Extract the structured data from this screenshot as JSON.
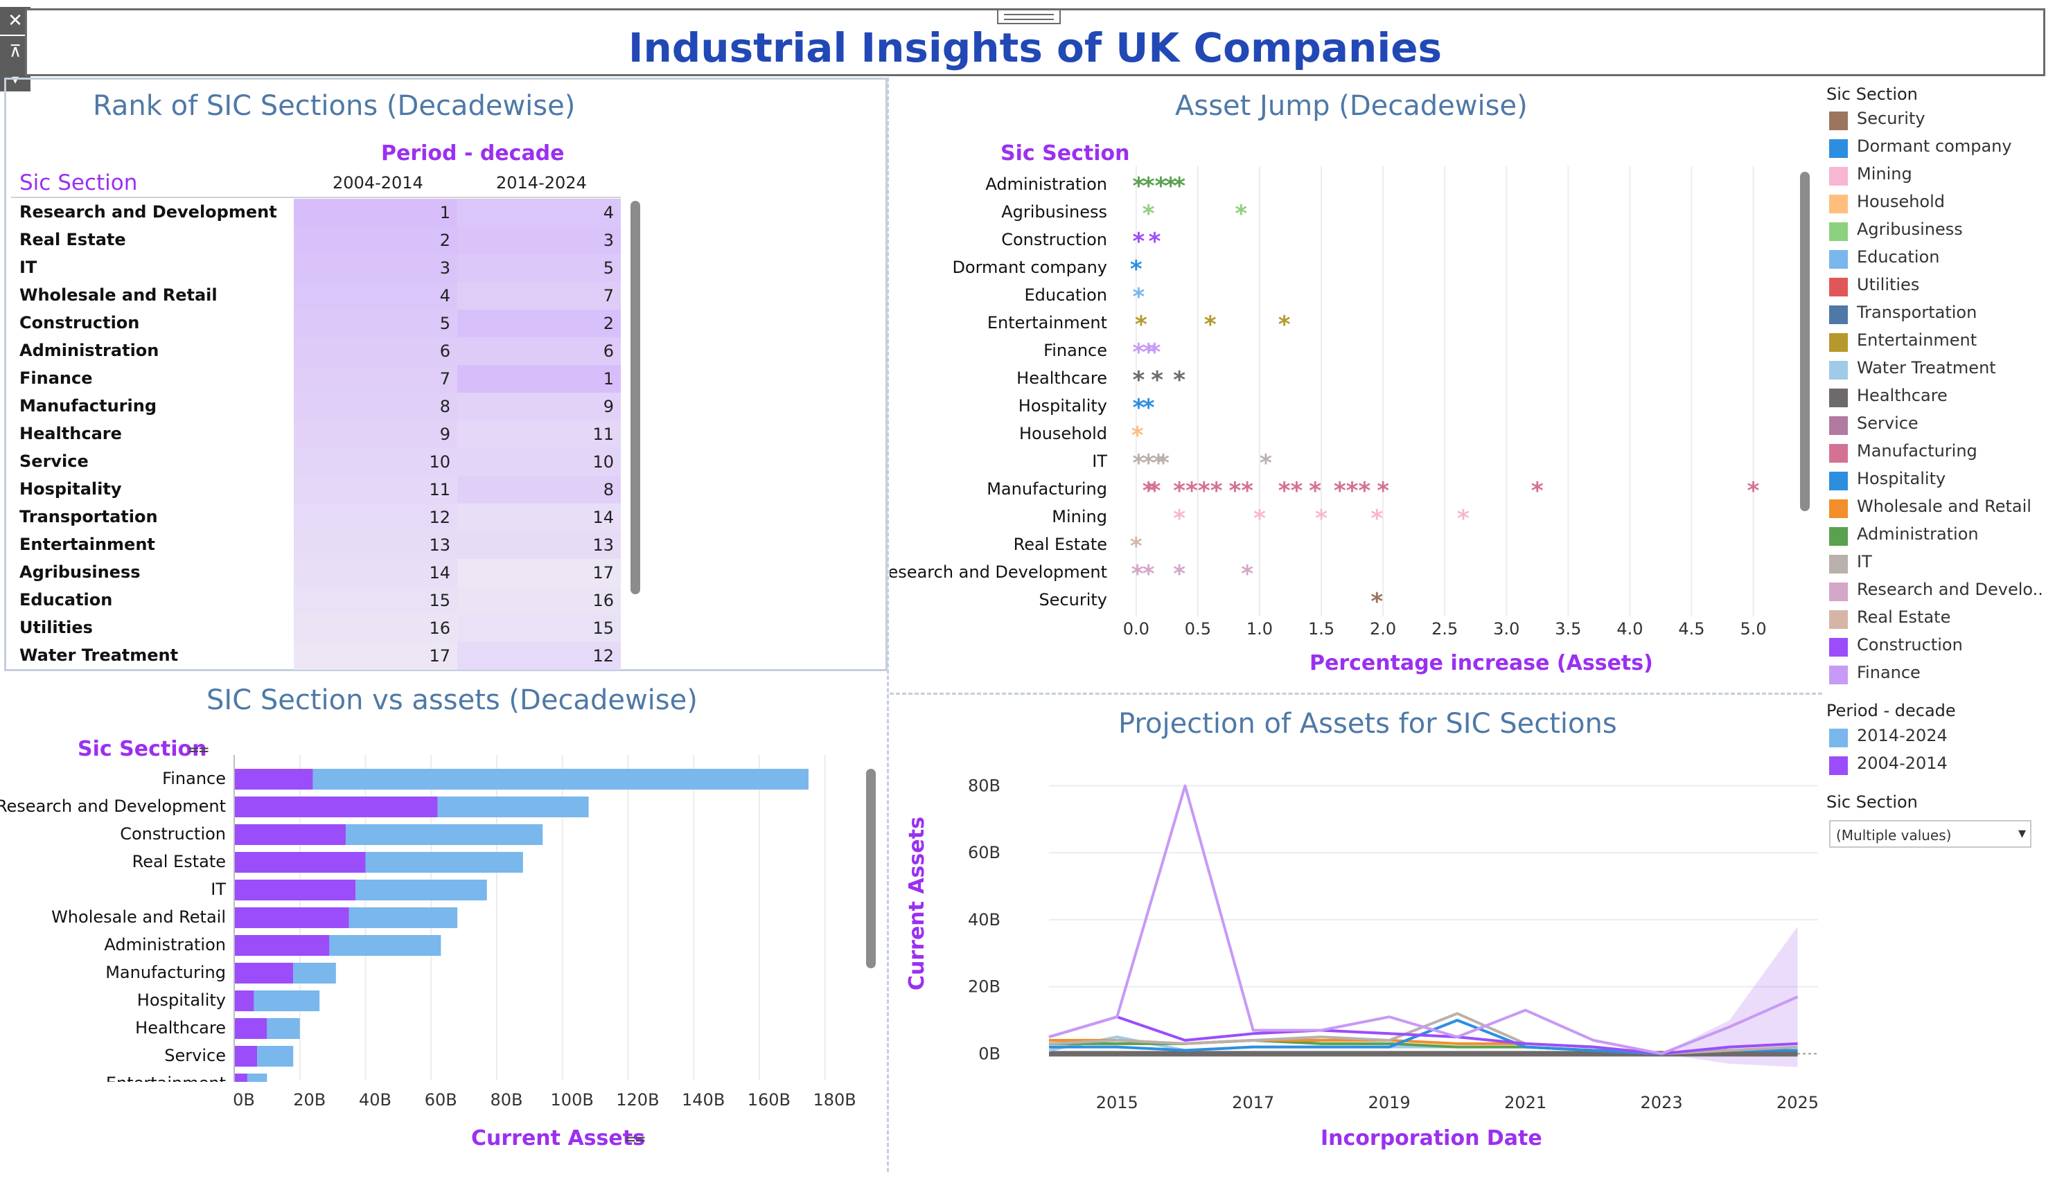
{
  "dashboard_title": "Industrial Insights of UK Companies",
  "toolbar": {
    "close_icon": "close-icon",
    "pin_icon": "pin-icon",
    "menu_icon": "chevron-down-icon"
  },
  "rank_panel": {
    "title": "Rank of SIC Sections (Decadewise)",
    "column_group": "Period  - decade",
    "row_header": "Sic Section",
    "columns": [
      "2004-2014",
      "2014-2024"
    ],
    "rows": [
      {
        "name": "Research and Development",
        "r1": "1",
        "r2": "4"
      },
      {
        "name": "Real Estate",
        "r1": "2",
        "r2": "3"
      },
      {
        "name": "IT",
        "r1": "3",
        "r2": "5"
      },
      {
        "name": "Wholesale and Retail",
        "r1": "4",
        "r2": "7"
      },
      {
        "name": "Construction",
        "r1": "5",
        "r2": "2"
      },
      {
        "name": "Administration",
        "r1": "6",
        "r2": "6"
      },
      {
        "name": "Finance",
        "r1": "7",
        "r2": "1"
      },
      {
        "name": "Manufacturing",
        "r1": "8",
        "r2": "9"
      },
      {
        "name": "Healthcare",
        "r1": "9",
        "r2": "11"
      },
      {
        "name": "Service",
        "r1": "10",
        "r2": "10"
      },
      {
        "name": "Hospitality",
        "r1": "11",
        "r2": "8"
      },
      {
        "name": "Transportation",
        "r1": "12",
        "r2": "14"
      },
      {
        "name": "Entertainment",
        "r1": "13",
        "r2": "13"
      },
      {
        "name": "Agribusiness",
        "r1": "14",
        "r2": "17"
      },
      {
        "name": "Education",
        "r1": "15",
        "r2": "16"
      },
      {
        "name": "Utilities",
        "r1": "16",
        "r2": "15"
      },
      {
        "name": "Water Treatment",
        "r1": "17",
        "r2": "12"
      }
    ]
  },
  "asset_jump_panel": {
    "title": "Asset Jump (Decadewise)",
    "row_header": "Sic Section",
    "x_label": "Percentage increase (Assets)"
  },
  "bar_panel": {
    "title": "SIC Section vs assets (Decadewise)",
    "row_header": "Sic Section",
    "x_label": "Current Assets"
  },
  "projection_panel": {
    "title": "Projection of Assets for SIC Sections",
    "x_label": "Incorporation Date",
    "y_label": "Current Assets"
  },
  "legend": {
    "sic_title": "Sic Section",
    "sic_items": [
      {
        "label": "Security",
        "color": "#9c755f"
      },
      {
        "label": "Dormant company",
        "color": "#2d8ee0"
      },
      {
        "label": "Mining",
        "color": "#f7b6d2"
      },
      {
        "label": "Household",
        "color": "#ffbe7d"
      },
      {
        "label": "Agribusiness",
        "color": "#8cd17d"
      },
      {
        "label": "Education",
        "color": "#79b7ec"
      },
      {
        "label": "Utilities",
        "color": "#e15759"
      },
      {
        "label": "Transportation",
        "color": "#4e79a7"
      },
      {
        "label": "Entertainment",
        "color": "#b6992d"
      },
      {
        "label": "Water Treatment",
        "color": "#a0cbe8"
      },
      {
        "label": "Healthcare",
        "color": "#6f6a6a"
      },
      {
        "label": "Service",
        "color": "#b07aa1"
      },
      {
        "label": "Manufacturing",
        "color": "#d37295"
      },
      {
        "label": "Hospitality",
        "color": "#2d8ee0"
      },
      {
        "label": "Wholesale and Retail",
        "color": "#f28e2b"
      },
      {
        "label": "Administration",
        "color": "#59a14f"
      },
      {
        "label": "IT",
        "color": "#bab0ac"
      },
      {
        "label": "Research and Develo..",
        "color": "#d4a6c8"
      },
      {
        "label": "Real Estate",
        "color": "#d7b5a6"
      },
      {
        "label": "Construction",
        "color": "#9b4dfa"
      },
      {
        "label": "Finance",
        "color": "#c79af5"
      }
    ],
    "period_title": "Period  - decade",
    "period_items": [
      {
        "label": "2014-2024",
        "color": "#79b7ec"
      },
      {
        "label": "2004-2014",
        "color": "#9b4dfa"
      }
    ],
    "filter_title": "Sic Section",
    "filter_value": "(Multiple values)"
  },
  "chart_data": [
    {
      "type": "scatter",
      "title": "Asset Jump (Decadewise)",
      "xlabel": "Percentage increase (Assets)",
      "ylabel": "Sic Section",
      "xlim": [
        -0.1,
        5.3
      ],
      "x_ticks": [
        "0.0",
        "0.5",
        "1.0",
        "1.5",
        "2.0",
        "2.5",
        "3.0",
        "3.5",
        "4.0",
        "4.5",
        "5.0"
      ],
      "series": [
        {
          "name": "Administration",
          "color": "#59a14f",
          "values": [
            0.02,
            0.1,
            0.2,
            0.28,
            0.35
          ]
        },
        {
          "name": "Agribusiness",
          "color": "#8cd17d",
          "values": [
            0.1,
            0.85
          ]
        },
        {
          "name": "Construction",
          "color": "#9b4dfa",
          "values": [
            0.02,
            0.15
          ]
        },
        {
          "name": "Dormant company",
          "color": "#2d8ee0",
          "values": [
            0.0
          ]
        },
        {
          "name": "Education",
          "color": "#79b7ec",
          "values": [
            0.02
          ]
        },
        {
          "name": "Entertainment",
          "color": "#b6992d",
          "values": [
            0.04,
            0.6,
            1.2
          ]
        },
        {
          "name": "Finance",
          "color": "#c79af5",
          "values": [
            0.02,
            0.1,
            0.15
          ]
        },
        {
          "name": "Healthcare",
          "color": "#6f6a6a",
          "values": [
            0.02,
            0.17,
            0.35
          ]
        },
        {
          "name": "Hospitality",
          "color": "#2d8ee0",
          "values": [
            0.02,
            0.1
          ]
        },
        {
          "name": "Household",
          "color": "#ffbe7d",
          "values": [
            0.01
          ]
        },
        {
          "name": "IT",
          "color": "#bab0ac",
          "values": [
            0.02,
            0.1,
            0.18,
            0.22,
            1.05
          ]
        },
        {
          "name": "Manufacturing",
          "color": "#d37295",
          "values": [
            0.1,
            0.15,
            0.35,
            0.45,
            0.55,
            0.65,
            0.8,
            0.9,
            1.2,
            1.3,
            1.45,
            1.65,
            1.75,
            1.85,
            2.0,
            3.25,
            5.0
          ]
        },
        {
          "name": "Mining",
          "color": "#f7b6d2",
          "values": [
            0.35,
            1.0,
            1.5,
            1.95,
            2.65
          ]
        },
        {
          "name": "Real Estate",
          "color": "#d7b5a6",
          "values": [
            0.0
          ]
        },
        {
          "name": "Research and Development",
          "color": "#d4a6c8",
          "values": [
            0.01,
            0.1,
            0.35,
            0.9
          ]
        },
        {
          "name": "Security",
          "color": "#9c755f",
          "values": [
            1.95
          ]
        }
      ]
    },
    {
      "type": "bar",
      "title": "SIC Section vs assets (Decadewise)",
      "xlabel": "Current Assets",
      "ylabel": "Sic Section",
      "xlim": [
        0,
        190
      ],
      "x_ticks": [
        "0B",
        "20B",
        "40B",
        "60B",
        "80B",
        "100B",
        "120B",
        "140B",
        "160B",
        "180B"
      ],
      "categories": [
        "Finance",
        "Research and Development",
        "Construction",
        "Real Estate",
        "IT",
        "Wholesale and Retail",
        "Administration",
        "Manufacturing",
        "Hospitality",
        "Healthcare",
        "Service",
        "Entertainment"
      ],
      "series": [
        {
          "name": "2004-2014",
          "color": "#9b4dfa",
          "values": [
            24,
            62,
            34,
            40,
            37,
            35,
            29,
            18,
            6,
            10,
            7,
            4
          ]
        },
        {
          "name": "2014-2024",
          "color": "#79b7ec",
          "values": [
            151,
            46,
            60,
            48,
            40,
            33,
            34,
            13,
            20,
            10,
            11,
            6
          ]
        }
      ]
    },
    {
      "type": "line",
      "title": "Projection of Assets for SIC Sections",
      "xlabel": "Incorporation Date",
      "ylabel": "Current Assets",
      "xlim": [
        2014,
        2025.3
      ],
      "ylim": [
        -8,
        83
      ],
      "x_ticks": [
        "2015",
        "2017",
        "2019",
        "2021",
        "2023",
        "2025"
      ],
      "y_ticks": [
        "0B",
        "20B",
        "40B",
        "60B",
        "80B"
      ],
      "x": [
        2014,
        2015,
        2016,
        2017,
        2018,
        2019,
        2020,
        2021,
        2022,
        2023,
        2024,
        2025
      ],
      "series": [
        {
          "name": "Finance",
          "color": "#c79af5",
          "values": [
            5,
            11,
            80,
            7,
            7,
            11,
            5,
            13,
            4,
            0,
            8,
            17
          ]
        },
        {
          "name": "Construction",
          "color": "#9b4dfa",
          "values": [
            5,
            11,
            4,
            6,
            7,
            6,
            5,
            3,
            2,
            0,
            2,
            3
          ]
        },
        {
          "name": "IT",
          "color": "#bab0ac",
          "values": [
            3,
            4,
            3,
            4,
            5,
            4,
            12,
            3,
            2,
            0,
            1,
            2
          ]
        },
        {
          "name": "Hospitality",
          "color": "#2d8ee0",
          "values": [
            2,
            2,
            1,
            2,
            2,
            2,
            10,
            2,
            1,
            0,
            1,
            1
          ]
        },
        {
          "name": "Wholesale and Retail",
          "color": "#f28e2b",
          "values": [
            4,
            4,
            3,
            4,
            4,
            4,
            3,
            3,
            2,
            0,
            1,
            1
          ]
        },
        {
          "name": "Administration",
          "color": "#59a14f",
          "values": [
            3,
            3,
            3,
            4,
            3,
            3,
            2,
            2,
            1,
            0,
            1,
            1
          ]
        },
        {
          "name": "Water Treatment",
          "color": "#a0cbe8",
          "values": [
            1,
            5,
            1,
            2,
            2,
            2,
            2,
            2,
            1,
            0,
            1,
            1
          ]
        },
        {
          "name": "Healthcare",
          "color": "#6f6a6a",
          "values": [
            0,
            0,
            0,
            0,
            0,
            0,
            0,
            0,
            0,
            0,
            0,
            0
          ]
        }
      ],
      "forecast_band": {
        "color": "#c79af5",
        "from_x": 2023,
        "upper": [
          0,
          10,
          38
        ],
        "lower": [
          0,
          -3,
          -4
        ]
      }
    }
  ]
}
